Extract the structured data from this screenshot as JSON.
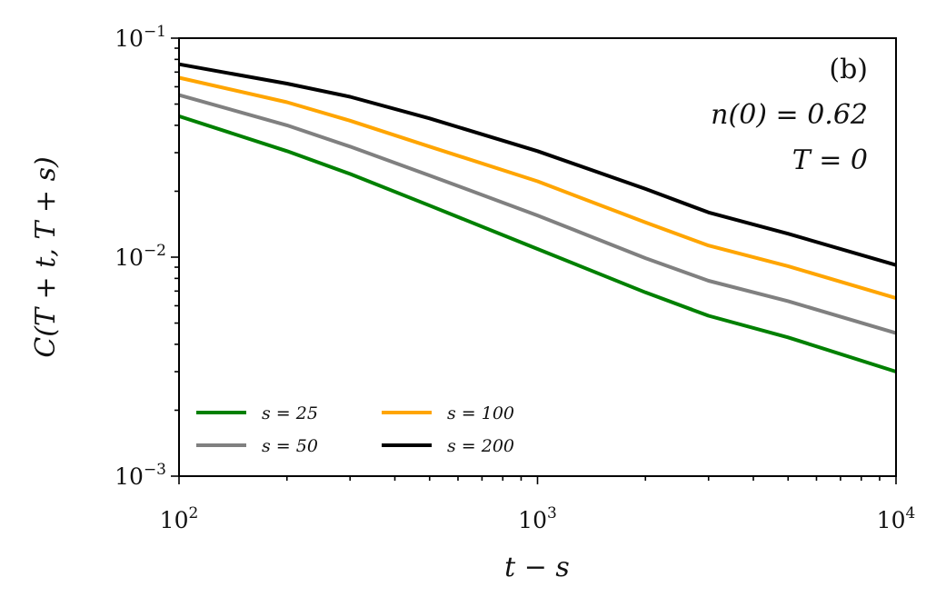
{
  "chart_data": {
    "type": "line",
    "xscale": "log",
    "yscale": "log",
    "xlim": [
      100,
      10000
    ],
    "ylim": [
      0.001,
      0.1
    ],
    "xlabel": "t − s",
    "ylabel": "C(T + t, T + s)",
    "x_ticks": [
      {
        "value": 100,
        "base": "10",
        "exp": "2"
      },
      {
        "value": 1000,
        "base": "10",
        "exp": "3"
      },
      {
        "value": 10000,
        "base": "10",
        "exp": "4"
      }
    ],
    "y_ticks": [
      {
        "value": 0.001,
        "base": "10",
        "exp": "−3"
      },
      {
        "value": 0.01,
        "base": "10",
        "exp": "−2"
      },
      {
        "value": 0.1,
        "base": "10",
        "exp": "−1"
      }
    ],
    "annotations": [
      "(b)",
      "n(0) = 0.62",
      "T = 0"
    ],
    "legend": {
      "placement": "lower-left",
      "columns": 2
    },
    "grid": false,
    "series": [
      {
        "name": "s = 25",
        "color": "#008000",
        "x": [
          100,
          200,
          300,
          500,
          1000,
          2000,
          3000,
          5000,
          10000
        ],
        "y": [
          0.044,
          0.0305,
          0.024,
          0.0172,
          0.0109,
          0.0069,
          0.0054,
          0.0043,
          0.003
        ]
      },
      {
        "name": "s = 50",
        "color": "#808080",
        "x": [
          100,
          200,
          300,
          500,
          1000,
          2000,
          3000,
          5000,
          10000
        ],
        "y": [
          0.055,
          0.04,
          0.032,
          0.0236,
          0.0155,
          0.0099,
          0.0078,
          0.0063,
          0.0045
        ]
      },
      {
        "name": "s = 100",
        "color": "#FFA500",
        "x": [
          100,
          200,
          300,
          500,
          1000,
          2000,
          3000,
          5000,
          10000
        ],
        "y": [
          0.066,
          0.051,
          0.042,
          0.032,
          0.0222,
          0.0144,
          0.0113,
          0.0091,
          0.0065
        ]
      },
      {
        "name": "s = 200",
        "color": "#000000",
        "x": [
          100,
          200,
          300,
          500,
          1000,
          2000,
          3000,
          5000,
          10000
        ],
        "y": [
          0.076,
          0.062,
          0.054,
          0.043,
          0.0305,
          0.0205,
          0.016,
          0.0128,
          0.0092
        ]
      }
    ]
  }
}
